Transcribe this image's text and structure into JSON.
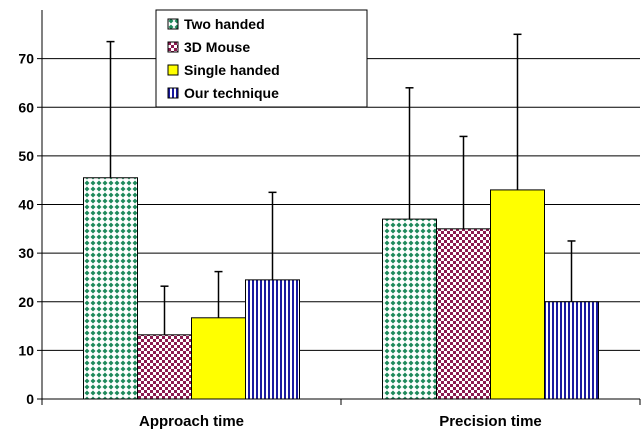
{
  "chart_data": {
    "type": "bar",
    "categories": [
      "Approach time",
      "Precision time"
    ],
    "series": [
      {
        "name": "Two handed",
        "values": [
          45.5,
          37
        ],
        "error": [
          28,
          27
        ],
        "color": "#1f8a5c",
        "pattern": "diamond-check"
      },
      {
        "name": "3D Mouse",
        "values": [
          13.2,
          35
        ],
        "error": [
          10,
          19
        ],
        "color": "#8b1a4f",
        "pattern": "checker"
      },
      {
        "name": "Single handed",
        "values": [
          16.7,
          43
        ],
        "error": [
          9.5,
          32
        ],
        "color": "#ffff00",
        "pattern": "solid"
      },
      {
        "name": "Our technique",
        "values": [
          24.5,
          20
        ],
        "error": [
          18,
          12.5
        ],
        "color": "#1a1aa0",
        "pattern": "vertical-lines"
      }
    ],
    "ylim": [
      0,
      80
    ],
    "yticks": [
      "0",
      "10",
      "20",
      "30",
      "40",
      "50",
      "60",
      "70"
    ],
    "grid": true,
    "legend": "top-center"
  }
}
